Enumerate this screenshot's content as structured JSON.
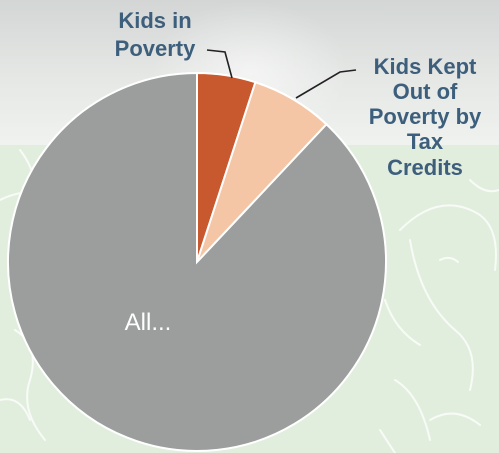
{
  "chart_data": {
    "type": "pie",
    "slices": [
      {
        "label": "All...",
        "value": 88,
        "color": "#9c9d9d"
      },
      {
        "label": "Kids in Poverty",
        "value": 5,
        "color": "#c8582e"
      },
      {
        "label": "Kids Kept Out of Poverty by Tax Credits",
        "value": 7,
        "color": "#f4c6a6"
      }
    ],
    "labels": {
      "kids_in_poverty": [
        "Kids in",
        "Poverty"
      ],
      "kids_kept_out": [
        "Kids Kept",
        "Out of",
        "Poverty by",
        "Tax",
        "Credits"
      ],
      "all": "All..."
    },
    "legend": "none"
  }
}
